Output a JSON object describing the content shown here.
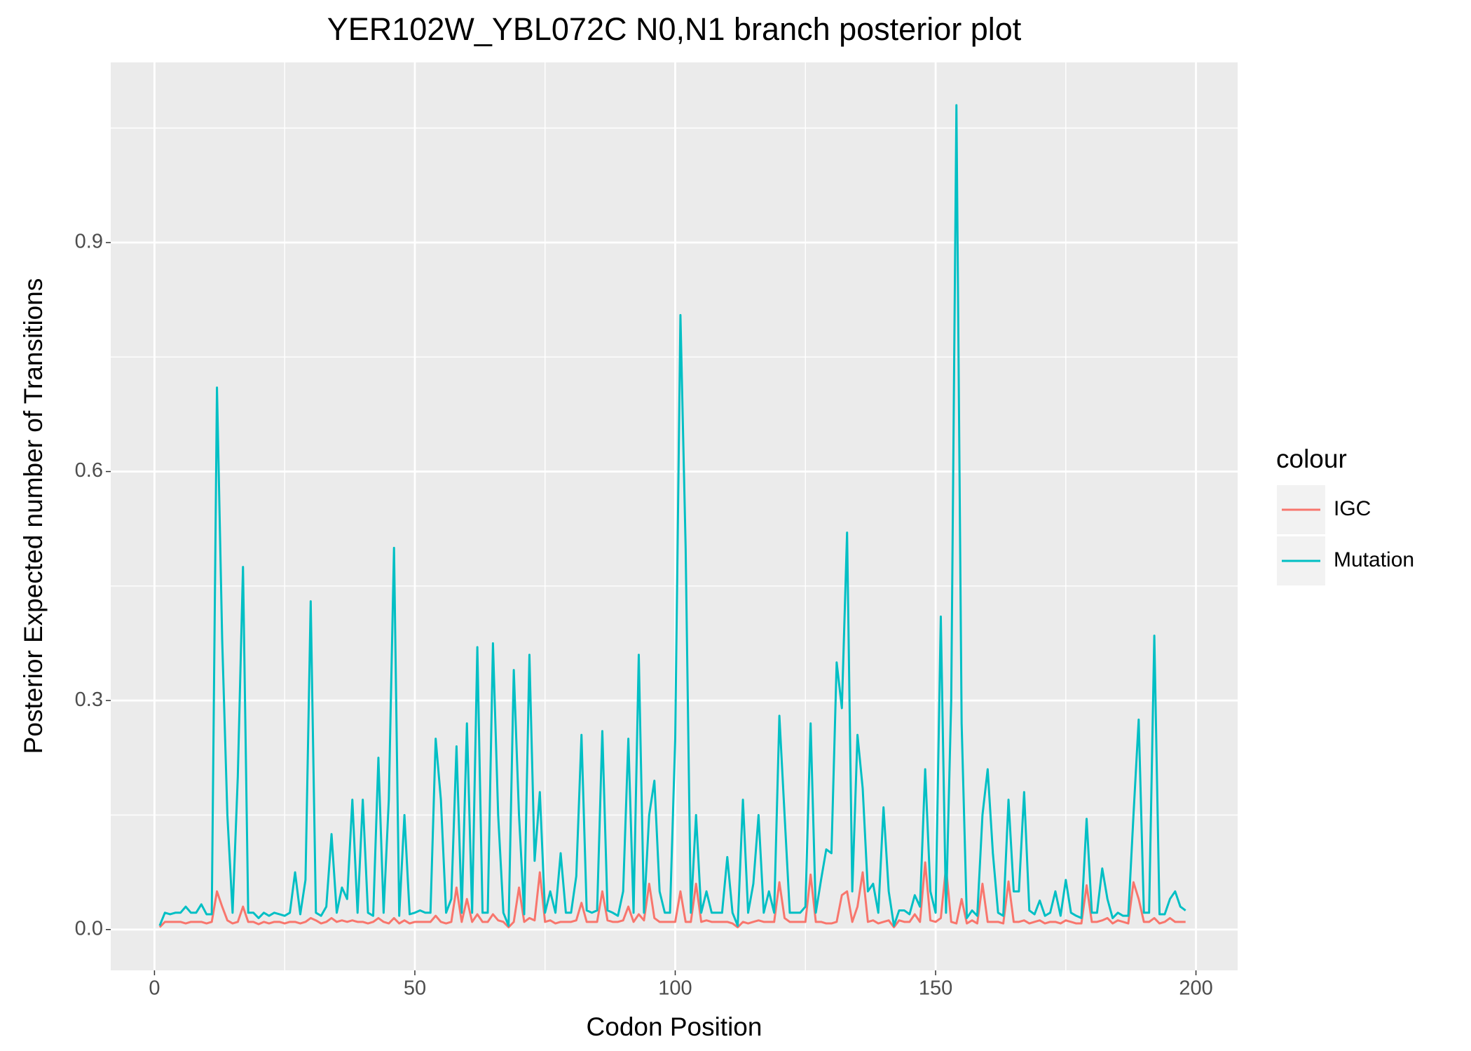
{
  "chart_data": {
    "type": "line",
    "title": "YER102W_YBL072C N0,N1 branch posterior plot",
    "x_label": "Codon Position",
    "y_label": "Posterior Expected number of Transitions",
    "legend_title": "colour",
    "legend_position": "right",
    "grid": true,
    "xlim": [
      -8.4,
      208
    ],
    "ylim": [
      -0.0535,
      1.136
    ],
    "xticks": [
      0,
      50,
      100,
      150,
      200
    ],
    "yticks": [
      {
        "value": 0,
        "label": "0.0"
      },
      {
        "value": 0.3,
        "label": "0.3"
      },
      {
        "value": 0.6,
        "label": "0.6"
      },
      {
        "value": 0.9,
        "label": "0.9"
      }
    ],
    "x": [
      1,
      2,
      3,
      4,
      5,
      6,
      7,
      8,
      9,
      10,
      11,
      12,
      13,
      14,
      15,
      16,
      17,
      18,
      19,
      20,
      21,
      22,
      23,
      24,
      25,
      26,
      27,
      28,
      29,
      30,
      31,
      32,
      33,
      34,
      35,
      36,
      37,
      38,
      39,
      40,
      41,
      42,
      43,
      44,
      45,
      46,
      47,
      48,
      49,
      50,
      51,
      52,
      53,
      54,
      55,
      56,
      57,
      58,
      59,
      60,
      61,
      62,
      63,
      64,
      65,
      66,
      67,
      68,
      69,
      70,
      71,
      72,
      73,
      74,
      75,
      76,
      77,
      78,
      79,
      80,
      81,
      82,
      83,
      84,
      85,
      86,
      87,
      88,
      89,
      90,
      91,
      92,
      93,
      94,
      95,
      96,
      97,
      98,
      99,
      100,
      101,
      102,
      103,
      104,
      105,
      106,
      107,
      108,
      109,
      110,
      111,
      112,
      113,
      114,
      115,
      116,
      117,
      118,
      119,
      120,
      121,
      122,
      123,
      124,
      125,
      126,
      127,
      128,
      129,
      130,
      131,
      132,
      133,
      134,
      135,
      136,
      137,
      138,
      139,
      140,
      141,
      142,
      143,
      144,
      145,
      146,
      147,
      148,
      149,
      150,
      151,
      152,
      153,
      154,
      155,
      156,
      157,
      158,
      159,
      160,
      161,
      162,
      163,
      164,
      165,
      166,
      167,
      168,
      169,
      170,
      171,
      172,
      173,
      174,
      175,
      176,
      177,
      178,
      179,
      180,
      181,
      182,
      183,
      184,
      185,
      186,
      187,
      188,
      189,
      190,
      191,
      192,
      193,
      194,
      195,
      196,
      197,
      198
    ],
    "series": [
      {
        "name": "IGC",
        "color": "#f8766d",
        "values": [
          0.003,
          0.01,
          0.01,
          0.01,
          0.01,
          0.008,
          0.01,
          0.01,
          0.01,
          0.008,
          0.01,
          0.05,
          0.03,
          0.012,
          0.008,
          0.01,
          0.03,
          0.01,
          0.01,
          0.007,
          0.01,
          0.008,
          0.01,
          0.01,
          0.008,
          0.01,
          0.01,
          0.008,
          0.01,
          0.015,
          0.012,
          0.008,
          0.01,
          0.015,
          0.01,
          0.012,
          0.01,
          0.012,
          0.01,
          0.01,
          0.008,
          0.01,
          0.015,
          0.01,
          0.008,
          0.015,
          0.008,
          0.012,
          0.008,
          0.01,
          0.01,
          0.01,
          0.01,
          0.018,
          0.01,
          0.008,
          0.01,
          0.055,
          0.01,
          0.04,
          0.01,
          0.02,
          0.01,
          0.01,
          0.02,
          0.012,
          0.01,
          0.003,
          0.01,
          0.055,
          0.01,
          0.015,
          0.012,
          0.075,
          0.01,
          0.012,
          0.008,
          0.01,
          0.01,
          0.01,
          0.012,
          0.035,
          0.01,
          0.01,
          0.01,
          0.05,
          0.012,
          0.01,
          0.01,
          0.012,
          0.03,
          0.01,
          0.02,
          0.012,
          0.06,
          0.015,
          0.01,
          0.01,
          0.01,
          0.01,
          0.05,
          0.01,
          0.01,
          0.06,
          0.01,
          0.012,
          0.01,
          0.01,
          0.01,
          0.01,
          0.008,
          0.003,
          0.01,
          0.008,
          0.01,
          0.012,
          0.01,
          0.01,
          0.01,
          0.062,
          0.015,
          0.01,
          0.01,
          0.01,
          0.01,
          0.072,
          0.01,
          0.01,
          0.008,
          0.008,
          0.01,
          0.045,
          0.05,
          0.01,
          0.03,
          0.075,
          0.01,
          0.012,
          0.008,
          0.01,
          0.012,
          0.003,
          0.012,
          0.01,
          0.01,
          0.02,
          0.01,
          0.088,
          0.012,
          0.01,
          0.015,
          0.082,
          0.01,
          0.008,
          0.04,
          0.008,
          0.012,
          0.008,
          0.06,
          0.01,
          0.01,
          0.01,
          0.008,
          0.063,
          0.01,
          0.01,
          0.012,
          0.008,
          0.01,
          0.012,
          0.008,
          0.01,
          0.01,
          0.008,
          0.012,
          0.01,
          0.008,
          0.008,
          0.058,
          0.01,
          0.01,
          0.012,
          0.015,
          0.008,
          0.012,
          0.01,
          0.008,
          0.062,
          0.04,
          0.01,
          0.01,
          0.015,
          0.008,
          0.01,
          0.015,
          0.01,
          0.01,
          0.01
        ]
      },
      {
        "name": "Mutation",
        "color": "#00bfc4",
        "values": [
          0.005,
          0.022,
          0.02,
          0.022,
          0.022,
          0.03,
          0.022,
          0.022,
          0.033,
          0.02,
          0.02,
          0.71,
          0.38,
          0.15,
          0.022,
          0.2,
          0.475,
          0.022,
          0.022,
          0.015,
          0.022,
          0.018,
          0.022,
          0.02,
          0.018,
          0.022,
          0.075,
          0.02,
          0.065,
          0.43,
          0.022,
          0.018,
          0.03,
          0.125,
          0.022,
          0.055,
          0.04,
          0.17,
          0.022,
          0.17,
          0.022,
          0.018,
          0.225,
          0.022,
          0.17,
          0.5,
          0.018,
          0.15,
          0.02,
          0.022,
          0.025,
          0.022,
          0.022,
          0.25,
          0.17,
          0.022,
          0.04,
          0.24,
          0.022,
          0.27,
          0.022,
          0.37,
          0.022,
          0.022,
          0.375,
          0.15,
          0.022,
          0.005,
          0.34,
          0.15,
          0.02,
          0.36,
          0.09,
          0.18,
          0.022,
          0.05,
          0.022,
          0.1,
          0.022,
          0.022,
          0.07,
          0.255,
          0.025,
          0.022,
          0.025,
          0.26,
          0.025,
          0.022,
          0.018,
          0.05,
          0.25,
          0.022,
          0.36,
          0.022,
          0.15,
          0.195,
          0.05,
          0.022,
          0.022,
          0.25,
          0.805,
          0.5,
          0.022,
          0.15,
          0.022,
          0.05,
          0.022,
          0.022,
          0.022,
          0.095,
          0.022,
          0.005,
          0.17,
          0.022,
          0.06,
          0.15,
          0.022,
          0.05,
          0.022,
          0.28,
          0.15,
          0.022,
          0.022,
          0.022,
          0.03,
          0.27,
          0.022,
          0.065,
          0.105,
          0.1,
          0.35,
          0.29,
          0.52,
          0.05,
          0.255,
          0.185,
          0.05,
          0.06,
          0.022,
          0.16,
          0.05,
          0.005,
          0.025,
          0.025,
          0.02,
          0.045,
          0.03,
          0.21,
          0.05,
          0.022,
          0.41,
          0.022,
          0.3,
          1.08,
          0.27,
          0.015,
          0.025,
          0.018,
          0.15,
          0.21,
          0.1,
          0.022,
          0.018,
          0.17,
          0.05,
          0.05,
          0.18,
          0.025,
          0.02,
          0.038,
          0.018,
          0.022,
          0.05,
          0.018,
          0.065,
          0.022,
          0.018,
          0.015,
          0.145,
          0.022,
          0.022,
          0.08,
          0.04,
          0.015,
          0.022,
          0.018,
          0.018,
          0.15,
          0.275,
          0.022,
          0.022,
          0.385,
          0.02,
          0.02,
          0.04,
          0.05,
          0.03,
          0.025
        ]
      }
    ]
  }
}
